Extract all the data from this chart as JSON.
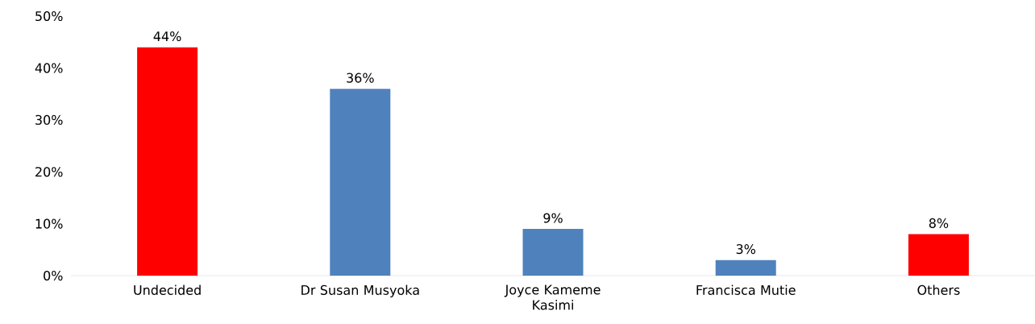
{
  "chart_data": {
    "type": "bar",
    "categories": [
      "Undecided",
      "Dr Susan Musyoka",
      "Joyce Kameme Kasimi",
      "Francisca Mutie",
      "Others"
    ],
    "values": [
      44,
      36,
      9,
      3,
      8
    ],
    "colors": [
      "#ff0000",
      "#4f81bd",
      "#4f81bd",
      "#4f81bd",
      "#ff0000"
    ],
    "value_labels": [
      "44%",
      "36%",
      "9%",
      "3%",
      "8%"
    ],
    "ylim": [
      0,
      50
    ],
    "yticks": [
      {
        "value": 0,
        "label": "0%"
      },
      {
        "value": 10,
        "label": "10%"
      },
      {
        "value": 20,
        "label": "20%"
      },
      {
        "value": 30,
        "label": "30%"
      },
      {
        "value": 40,
        "label": "40%"
      },
      {
        "value": 50,
        "label": "50%"
      }
    ]
  }
}
